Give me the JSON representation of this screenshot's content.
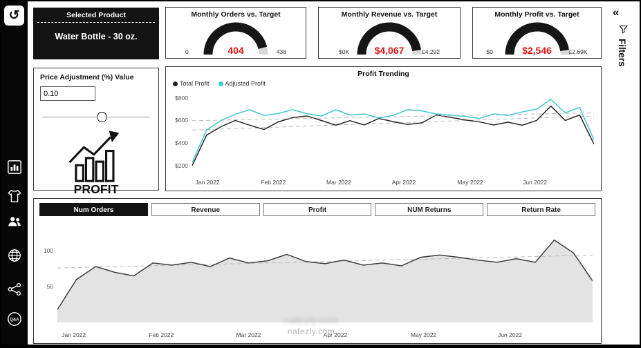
{
  "glyphs": {
    "undo": "↺",
    "collapse": "«"
  },
  "sidebar": {
    "qa_label": "Q&A"
  },
  "selected_product": {
    "header": "Selected Product",
    "value": "Water Bottle - 30 oz."
  },
  "gauges": [
    {
      "title": "Monthly Orders vs. Target",
      "min": "0",
      "value": "404",
      "max": "438",
      "fraction": 0.92
    },
    {
      "title": "Monthly Revenue vs. Target",
      "min": "$0K",
      "value": "$4,067",
      "max": "£4,292",
      "fraction": 0.95
    },
    {
      "title": "Monthly Profit vs. Target",
      "min": "$0",
      "value": "$2,546",
      "max": "£2.69K",
      "fraction": 0.95
    }
  ],
  "price_adjustment": {
    "title": "Price Adjustment (%) Value",
    "value": "0.10",
    "slider_pos": 0.55,
    "icon_label": "PROFIT"
  },
  "chart_data": [
    {
      "type": "line",
      "title": "Profit Trending",
      "x_ticks": [
        "Jan 2022",
        "Feb 2022",
        "Mar 2022",
        "Apr 2022",
        "May 2022",
        "Jun 2022"
      ],
      "y_ticks": [
        {
          "label": "$800",
          "value": 800
        },
        {
          "label": "$600",
          "value": 600
        },
        {
          "label": "$400",
          "value": 400
        },
        {
          "label": "$200",
          "value": 200
        }
      ],
      "ylim": [
        150,
        860
      ],
      "legend_position": "top-left",
      "series": [
        {
          "name": "Total Profit",
          "color": "#252423",
          "values": [
            200,
            470,
            545,
            600,
            558,
            520,
            588,
            625,
            640,
            600,
            558,
            598,
            560,
            618,
            590,
            565,
            578,
            648,
            628,
            605,
            588,
            560,
            585,
            558,
            600,
            728,
            600,
            648,
            390
          ],
          "trend": [
            515,
            640
          ]
        },
        {
          "name": "Adjusted Profit",
          "color": "#3fc8d2",
          "values": [
            228,
            515,
            600,
            655,
            695,
            645,
            662,
            695,
            660,
            638,
            695,
            648,
            658,
            622,
            645,
            695,
            685,
            658,
            648,
            636,
            618,
            658,
            645,
            676,
            700,
            786,
            668,
            715,
            428
          ],
          "trend": [
            598,
            668
          ]
        }
      ]
    },
    {
      "type": "area",
      "title": "Num Orders",
      "x_ticks": [
        "Jan 2022",
        "Feb 2022",
        "Mar 2022",
        "Apr 2022",
        "May 2022",
        "Jun 2022"
      ],
      "y_ticks": [
        {
          "label": "100",
          "value": 100
        },
        {
          "label": "50",
          "value": 50
        }
      ],
      "ylim": [
        0,
        132
      ],
      "series": [
        {
          "name": "Num Orders",
          "color": "#3d3d3d",
          "fill": "#e3e3e3",
          "values": [
            18,
            60,
            78,
            70,
            65,
            83,
            80,
            84,
            78,
            90,
            83,
            86,
            95,
            85,
            82,
            87,
            80,
            83,
            79,
            91,
            94,
            91,
            87,
            84,
            89,
            84,
            115,
            97,
            58
          ],
          "trend": [
            76,
            94
          ]
        }
      ]
    }
  ],
  "tabs": [
    {
      "label": "Num Orders",
      "active": true
    },
    {
      "label": "Revenue",
      "active": false
    },
    {
      "label": "Profit",
      "active": false
    },
    {
      "label": "NUM Returns",
      "active": false
    },
    {
      "label": "Return Rate",
      "active": false
    }
  ],
  "filters_panel": {
    "label": "Filters"
  },
  "watermark": {
    "domain": "nafezly.com"
  }
}
